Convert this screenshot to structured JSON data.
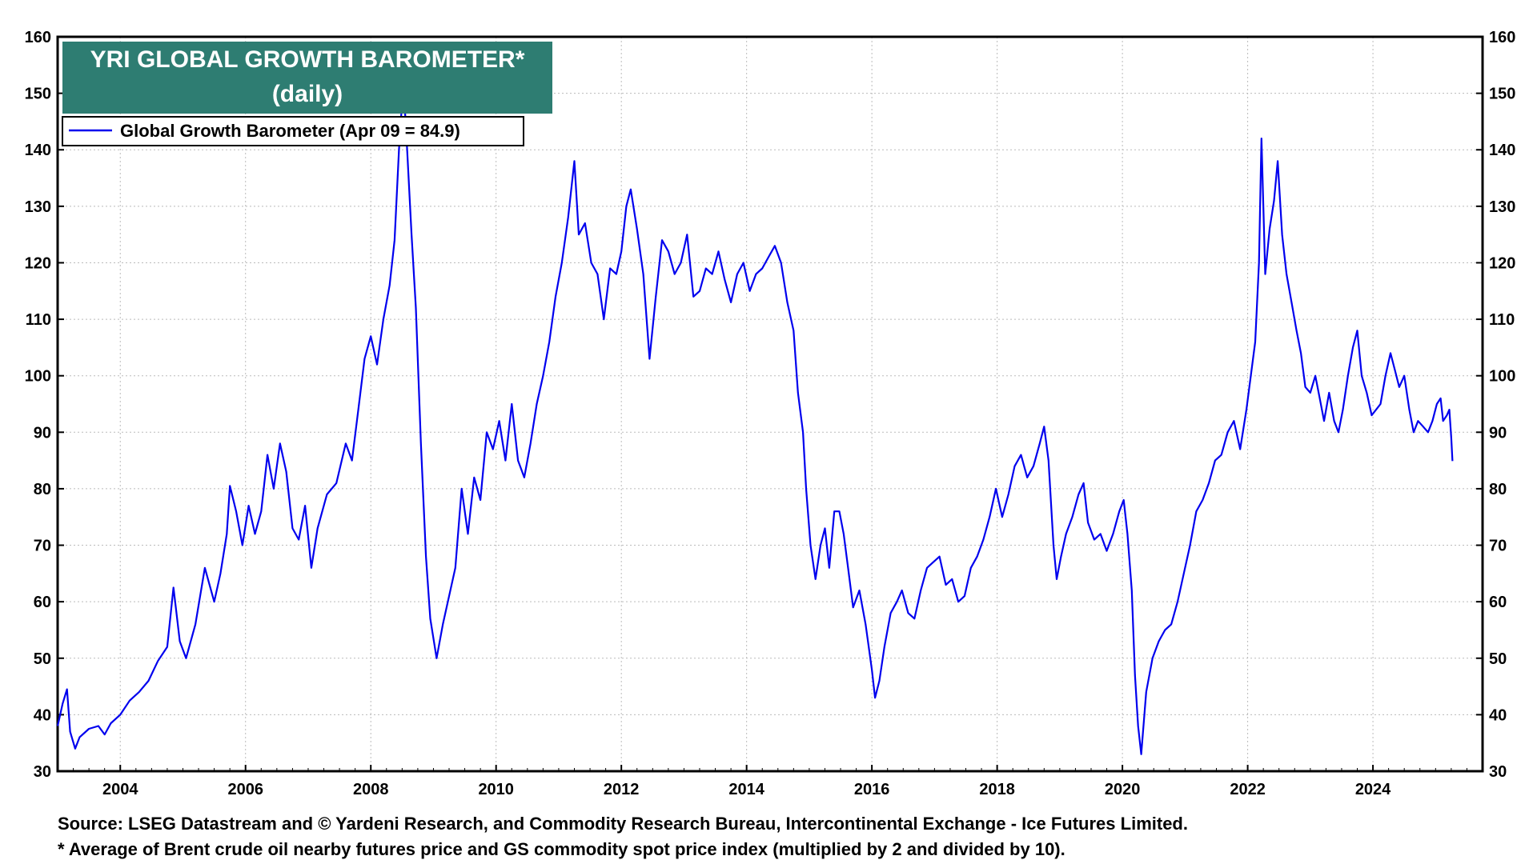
{
  "chart_data": {
    "type": "line",
    "title": "YRI GLOBAL GROWTH BAROMETER*",
    "subtitle": "(daily)",
    "xlabel": "",
    "ylabel": "",
    "xlim": [
      2003.0,
      2025.75
    ],
    "ylim": [
      30,
      160
    ],
    "y_ticks": [
      30,
      40,
      50,
      60,
      70,
      80,
      90,
      100,
      110,
      120,
      130,
      140,
      150,
      160
    ],
    "x_ticks": [
      "2004",
      "2006",
      "2008",
      "2010",
      "2012",
      "2014",
      "2016",
      "2018",
      "2020",
      "2022",
      "2024"
    ],
    "grid": true,
    "legend_position": "top-left",
    "colors": {
      "series": "#0000ee",
      "title_bg": "#2e7d72",
      "grid": "#bbbbbb",
      "axis": "#000000"
    },
    "series": [
      {
        "name": "Global Growth Barometer (Apr 09 = 84.9)",
        "points": [
          [
            2003.0,
            38
          ],
          [
            2003.08,
            42
          ],
          [
            2003.15,
            44.5
          ],
          [
            2003.2,
            37
          ],
          [
            2003.28,
            34
          ],
          [
            2003.35,
            36
          ],
          [
            2003.5,
            37.5
          ],
          [
            2003.65,
            38
          ],
          [
            2003.75,
            36.5
          ],
          [
            2003.85,
            38.5
          ],
          [
            2004.0,
            40
          ],
          [
            2004.15,
            42.5
          ],
          [
            2004.3,
            44
          ],
          [
            2004.45,
            46
          ],
          [
            2004.6,
            49.5
          ],
          [
            2004.75,
            52
          ],
          [
            2004.85,
            62.5
          ],
          [
            2004.95,
            53
          ],
          [
            2005.05,
            50
          ],
          [
            2005.2,
            56
          ],
          [
            2005.35,
            66
          ],
          [
            2005.5,
            60
          ],
          [
            2005.6,
            65
          ],
          [
            2005.7,
            72
          ],
          [
            2005.75,
            80.5
          ],
          [
            2005.85,
            76
          ],
          [
            2005.95,
            70
          ],
          [
            2006.05,
            77
          ],
          [
            2006.15,
            72
          ],
          [
            2006.25,
            76
          ],
          [
            2006.35,
            86
          ],
          [
            2006.45,
            80
          ],
          [
            2006.55,
            88
          ],
          [
            2006.65,
            83
          ],
          [
            2006.75,
            73
          ],
          [
            2006.85,
            71
          ],
          [
            2006.95,
            77
          ],
          [
            2007.05,
            66
          ],
          [
            2007.15,
            73
          ],
          [
            2007.3,
            79
          ],
          [
            2007.45,
            81
          ],
          [
            2007.6,
            88
          ],
          [
            2007.7,
            85
          ],
          [
            2007.8,
            94
          ],
          [
            2007.9,
            103
          ],
          [
            2008.0,
            107
          ],
          [
            2008.1,
            102
          ],
          [
            2008.2,
            110
          ],
          [
            2008.3,
            116
          ],
          [
            2008.38,
            124
          ],
          [
            2008.45,
            140
          ],
          [
            2008.52,
            152
          ],
          [
            2008.58,
            140
          ],
          [
            2008.65,
            125
          ],
          [
            2008.72,
            112
          ],
          [
            2008.8,
            88
          ],
          [
            2008.88,
            68
          ],
          [
            2008.95,
            57
          ],
          [
            2009.05,
            50
          ],
          [
            2009.15,
            56
          ],
          [
            2009.25,
            61
          ],
          [
            2009.35,
            66
          ],
          [
            2009.45,
            80
          ],
          [
            2009.55,
            72
          ],
          [
            2009.65,
            82
          ],
          [
            2009.75,
            78
          ],
          [
            2009.85,
            90
          ],
          [
            2009.95,
            87
          ],
          [
            2010.05,
            92
          ],
          [
            2010.15,
            85
          ],
          [
            2010.25,
            95
          ],
          [
            2010.35,
            85
          ],
          [
            2010.45,
            82
          ],
          [
            2010.55,
            88
          ],
          [
            2010.65,
            95
          ],
          [
            2010.75,
            100
          ],
          [
            2010.85,
            106
          ],
          [
            2010.95,
            114
          ],
          [
            2011.05,
            120
          ],
          [
            2011.15,
            128
          ],
          [
            2011.25,
            138
          ],
          [
            2011.32,
            125
          ],
          [
            2011.42,
            127
          ],
          [
            2011.52,
            120
          ],
          [
            2011.62,
            118
          ],
          [
            2011.72,
            110
          ],
          [
            2011.82,
            119
          ],
          [
            2011.92,
            118
          ],
          [
            2012.0,
            122
          ],
          [
            2012.08,
            130
          ],
          [
            2012.15,
            133
          ],
          [
            2012.25,
            126
          ],
          [
            2012.35,
            118
          ],
          [
            2012.45,
            103
          ],
          [
            2012.55,
            114
          ],
          [
            2012.65,
            124
          ],
          [
            2012.75,
            122
          ],
          [
            2012.85,
            118
          ],
          [
            2012.95,
            120
          ],
          [
            2013.05,
            125
          ],
          [
            2013.15,
            114
          ],
          [
            2013.25,
            115
          ],
          [
            2013.35,
            119
          ],
          [
            2013.45,
            118
          ],
          [
            2013.55,
            122
          ],
          [
            2013.65,
            117
          ],
          [
            2013.75,
            113
          ],
          [
            2013.85,
            118
          ],
          [
            2013.95,
            120
          ],
          [
            2014.05,
            115
          ],
          [
            2014.15,
            118
          ],
          [
            2014.25,
            119
          ],
          [
            2014.35,
            121
          ],
          [
            2014.45,
            123
          ],
          [
            2014.55,
            120
          ],
          [
            2014.65,
            113
          ],
          [
            2014.75,
            108
          ],
          [
            2014.82,
            97
          ],
          [
            2014.9,
            90
          ],
          [
            2014.95,
            80
          ],
          [
            2015.02,
            70
          ],
          [
            2015.1,
            64
          ],
          [
            2015.18,
            70
          ],
          [
            2015.25,
            73
          ],
          [
            2015.32,
            66
          ],
          [
            2015.4,
            76
          ],
          [
            2015.48,
            76
          ],
          [
            2015.55,
            72
          ],
          [
            2015.62,
            66
          ],
          [
            2015.7,
            59
          ],
          [
            2015.8,
            62
          ],
          [
            2015.9,
            56
          ],
          [
            2016.0,
            48
          ],
          [
            2016.05,
            43
          ],
          [
            2016.12,
            46
          ],
          [
            2016.2,
            52
          ],
          [
            2016.3,
            58
          ],
          [
            2016.4,
            60
          ],
          [
            2016.48,
            62
          ],
          [
            2016.58,
            58
          ],
          [
            2016.68,
            57
          ],
          [
            2016.78,
            62
          ],
          [
            2016.88,
            66
          ],
          [
            2016.98,
            67
          ],
          [
            2017.08,
            68
          ],
          [
            2017.18,
            63
          ],
          [
            2017.28,
            64
          ],
          [
            2017.38,
            60
          ],
          [
            2017.48,
            61
          ],
          [
            2017.58,
            66
          ],
          [
            2017.68,
            68
          ],
          [
            2017.78,
            71
          ],
          [
            2017.88,
            75
          ],
          [
            2017.98,
            80
          ],
          [
            2018.08,
            75
          ],
          [
            2018.18,
            79
          ],
          [
            2018.28,
            84
          ],
          [
            2018.38,
            86
          ],
          [
            2018.48,
            82
          ],
          [
            2018.58,
            84
          ],
          [
            2018.68,
            88
          ],
          [
            2018.75,
            91
          ],
          [
            2018.82,
            85
          ],
          [
            2018.9,
            70
          ],
          [
            2018.95,
            64
          ],
          [
            2019.02,
            68
          ],
          [
            2019.1,
            72
          ],
          [
            2019.2,
            75
          ],
          [
            2019.3,
            79
          ],
          [
            2019.38,
            81
          ],
          [
            2019.45,
            74
          ],
          [
            2019.55,
            71
          ],
          [
            2019.65,
            72
          ],
          [
            2019.75,
            69
          ],
          [
            2019.85,
            72
          ],
          [
            2019.95,
            76
          ],
          [
            2020.02,
            78
          ],
          [
            2020.08,
            72
          ],
          [
            2020.15,
            62
          ],
          [
            2020.2,
            47
          ],
          [
            2020.25,
            38
          ],
          [
            2020.3,
            33
          ],
          [
            2020.38,
            44
          ],
          [
            2020.48,
            50
          ],
          [
            2020.58,
            53
          ],
          [
            2020.68,
            55
          ],
          [
            2020.78,
            56
          ],
          [
            2020.88,
            60
          ],
          [
            2020.98,
            65
          ],
          [
            2021.08,
            70
          ],
          [
            2021.18,
            76
          ],
          [
            2021.28,
            78
          ],
          [
            2021.38,
            81
          ],
          [
            2021.48,
            85
          ],
          [
            2021.58,
            86
          ],
          [
            2021.68,
            90
          ],
          [
            2021.78,
            92
          ],
          [
            2021.88,
            87
          ],
          [
            2021.98,
            94
          ],
          [
            2022.05,
            100
          ],
          [
            2022.12,
            106
          ],
          [
            2022.18,
            120
          ],
          [
            2022.22,
            142
          ],
          [
            2022.28,
            118
          ],
          [
            2022.35,
            126
          ],
          [
            2022.42,
            131
          ],
          [
            2022.48,
            138
          ],
          [
            2022.55,
            125
          ],
          [
            2022.62,
            118
          ],
          [
            2022.7,
            113
          ],
          [
            2022.78,
            108
          ],
          [
            2022.85,
            104
          ],
          [
            2022.92,
            98
          ],
          [
            2023.0,
            97
          ],
          [
            2023.08,
            100
          ],
          [
            2023.15,
            96
          ],
          [
            2023.22,
            92
          ],
          [
            2023.3,
            97
          ],
          [
            2023.38,
            92
          ],
          [
            2023.45,
            90
          ],
          [
            2023.52,
            94
          ],
          [
            2023.6,
            100
          ],
          [
            2023.68,
            105
          ],
          [
            2023.75,
            108
          ],
          [
            2023.82,
            100
          ],
          [
            2023.9,
            97
          ],
          [
            2023.98,
            93
          ],
          [
            2024.05,
            94
          ],
          [
            2024.12,
            95
          ],
          [
            2024.2,
            100
          ],
          [
            2024.28,
            104
          ],
          [
            2024.35,
            101
          ],
          [
            2024.42,
            98
          ],
          [
            2024.5,
            100
          ],
          [
            2024.58,
            94
          ],
          [
            2024.65,
            90
          ],
          [
            2024.72,
            92
          ],
          [
            2024.8,
            91
          ],
          [
            2024.88,
            90
          ],
          [
            2024.95,
            92
          ],
          [
            2025.02,
            95
          ],
          [
            2025.08,
            96
          ],
          [
            2025.12,
            92
          ],
          [
            2025.18,
            93
          ],
          [
            2025.22,
            94
          ],
          [
            2025.25,
            89
          ],
          [
            2025.27,
            84.9
          ]
        ]
      }
    ]
  },
  "footer": {
    "source": "Source: LSEG Datastream and © Yardeni Research, and Commodity Research Bureau, Intercontinental Exchange - Ice Futures Limited.",
    "note": "* Average of Brent crude oil nearby futures price and GS commodity spot price index (multiplied by 2 and divided by 10)."
  }
}
